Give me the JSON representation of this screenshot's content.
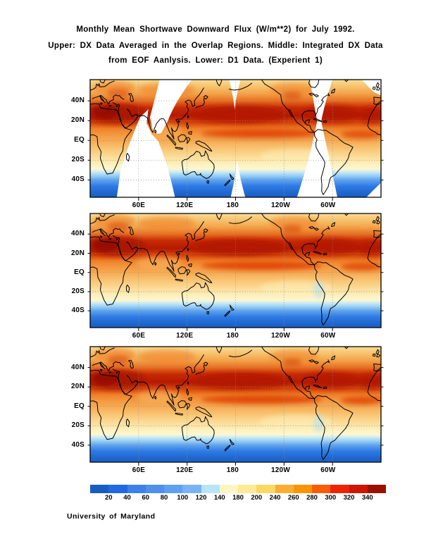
{
  "title": {
    "line1": "Monthly Mean Shortwave Downward Flux (W/m**2) for July 1992.",
    "line2": "Upper: DX Data Averaged in the Overlap Regions. Middle: Integrated DX Data",
    "line3": "from EOF Aanlysis. Lower: D1 Data. (Experient 1)"
  },
  "credit": "University of Maryland",
  "chart_data": {
    "type": "heatmap",
    "subtype": "filled-contour world maps (equirectangular, longitude 0E eastward through 360E, latitude about 60N to 60S)",
    "variable": "Monthly mean shortwave downward flux",
    "units": "W/m**2",
    "period": "July 1992",
    "panels": [
      {
        "position": "upper",
        "label": "DX Data Averaged in the Overlap Regions",
        "note": "white bowtie-shaped areas = no data outside satellite overlap regions (near ~70E, ~180, ~75W and map corners)"
      },
      {
        "position": "middle",
        "label": "Integrated DX Data from EOF Aanlysis"
      },
      {
        "position": "lower",
        "label": "D1 Data (Experient 1)"
      }
    ],
    "x_tick_labels": [
      "60E",
      "120E",
      "180",
      "120W",
      "60W"
    ],
    "y_tick_labels": [
      "40N",
      "20N",
      "EQ",
      "20S",
      "40S"
    ],
    "grid": "dotted gray graticule every 60 deg longitude / 20 deg latitude",
    "legend_position": "horizontal colorbar at bottom",
    "colorbar": {
      "tick_labels": [
        "20",
        "40",
        "60",
        "80",
        "100",
        "120",
        "140",
        "180",
        "200",
        "240",
        "260",
        "280",
        "300",
        "320",
        "340"
      ],
      "colors": [
        "#195cc0",
        "#2068e4",
        "#3c82e8",
        "#4e90ec",
        "#60a0f0",
        "#78b4f4",
        "#b8e4f8",
        "#fdf6c4",
        "#fcea96",
        "#fbd862",
        "#f9ae32",
        "#fa9400",
        "#fa5c00",
        "#ee2400",
        "#cc1600",
        "#9c1000"
      ]
    },
    "zonal_mean_estimate_w_m2": [
      {
        "lat": 60,
        "flux": 210
      },
      {
        "lat": 45,
        "flux": 250
      },
      {
        "lat": 30,
        "flux": 320
      },
      {
        "lat": 20,
        "flux": 330
      },
      {
        "lat": 5,
        "flux": 280
      },
      {
        "lat": -10,
        "flux": 200
      },
      {
        "lat": -25,
        "flux": 150
      },
      {
        "lat": -35,
        "flux": 100
      },
      {
        "lat": -45,
        "flux": 50
      },
      {
        "lat": -55,
        "flux": 25
      }
    ],
    "pattern_summary": "Maxima of 300-340 W/m**2 (dark red) along 15-35N over North Africa/Arabia, the central-western North Pacific and the subtropical North Atlantic; a secondary equatorial maximum near 0-8N across the Pacific and Atlantic; values fall through yellow/cream (120-200) near 10-30S to blues (<100) poleward of ~35S."
  }
}
